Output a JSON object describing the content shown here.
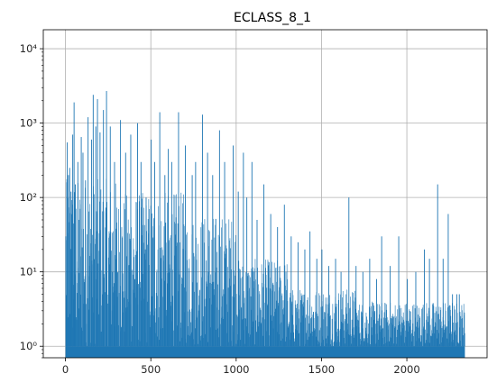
{
  "chart_data": {
    "type": "bar",
    "title": "ECLASS_8_1",
    "xlabel": "",
    "ylabel": "",
    "x_scale": "linear",
    "y_scale": "log",
    "xlim": [
      -130,
      2470
    ],
    "ylim": [
      0.7,
      18000
    ],
    "grid": true,
    "color": "#1f77b4",
    "x_ticks": [
      0,
      500,
      1000,
      1500,
      2000
    ],
    "x_tick_labels": [
      "0",
      "500",
      "1000",
      "1500",
      "2000"
    ],
    "y_ticks": [
      1,
      10,
      100,
      1000,
      10000
    ],
    "y_tick_labels": [
      "10⁰",
      "10¹",
      "10²",
      "10³",
      "10⁴"
    ],
    "x_range": [
      0,
      2340
    ],
    "bin_width": 2,
    "baseline_value": 1,
    "spikes": [
      {
        "x": 5,
        "value": 160
      },
      {
        "x": 8,
        "value": 550
      },
      {
        "x": 15,
        "value": 200
      },
      {
        "x": 22,
        "value": 250
      },
      {
        "x": 30,
        "value": 120
      },
      {
        "x": 40,
        "value": 700
      },
      {
        "x": 48,
        "value": 1900
      },
      {
        "x": 55,
        "value": 150
      },
      {
        "x": 70,
        "value": 300
      },
      {
        "x": 90,
        "value": 650
      },
      {
        "x": 100,
        "value": 400
      },
      {
        "x": 115,
        "value": 170
      },
      {
        "x": 130,
        "value": 1200
      },
      {
        "x": 150,
        "value": 600
      },
      {
        "x": 160,
        "value": 2400
      },
      {
        "x": 175,
        "value": 900
      },
      {
        "x": 185,
        "value": 2100
      },
      {
        "x": 200,
        "value": 750
      },
      {
        "x": 220,
        "value": 1500
      },
      {
        "x": 238,
        "value": 2700
      },
      {
        "x": 260,
        "value": 900
      },
      {
        "x": 285,
        "value": 300
      },
      {
        "x": 320,
        "value": 1100
      },
      {
        "x": 350,
        "value": 400
      },
      {
        "x": 380,
        "value": 700
      },
      {
        "x": 420,
        "value": 1000
      },
      {
        "x": 440,
        "value": 300
      },
      {
        "x": 470,
        "value": 100
      },
      {
        "x": 500,
        "value": 600
      },
      {
        "x": 520,
        "value": 300
      },
      {
        "x": 550,
        "value": 1400
      },
      {
        "x": 580,
        "value": 200
      },
      {
        "x": 600,
        "value": 450
      },
      {
        "x": 620,
        "value": 300
      },
      {
        "x": 660,
        "value": 1400
      },
      {
        "x": 700,
        "value": 500
      },
      {
        "x": 740,
        "value": 200
      },
      {
        "x": 760,
        "value": 300
      },
      {
        "x": 800,
        "value": 1300
      },
      {
        "x": 830,
        "value": 400
      },
      {
        "x": 860,
        "value": 200
      },
      {
        "x": 900,
        "value": 800
      },
      {
        "x": 930,
        "value": 300
      },
      {
        "x": 980,
        "value": 500
      },
      {
        "x": 1010,
        "value": 120
      },
      {
        "x": 1040,
        "value": 400
      },
      {
        "x": 1060,
        "value": 100
      },
      {
        "x": 1090,
        "value": 300
      },
      {
        "x": 1120,
        "value": 50
      },
      {
        "x": 1160,
        "value": 150
      },
      {
        "x": 1200,
        "value": 60
      },
      {
        "x": 1240,
        "value": 40
      },
      {
        "x": 1280,
        "value": 80
      },
      {
        "x": 1320,
        "value": 30
      },
      {
        "x": 1360,
        "value": 25
      },
      {
        "x": 1400,
        "value": 20
      },
      {
        "x": 1430,
        "value": 35
      },
      {
        "x": 1470,
        "value": 15
      },
      {
        "x": 1500,
        "value": 20
      },
      {
        "x": 1540,
        "value": 12
      },
      {
        "x": 1580,
        "value": 15
      },
      {
        "x": 1612,
        "value": 10
      },
      {
        "x": 1658,
        "value": 100
      },
      {
        "x": 1700,
        "value": 12
      },
      {
        "x": 1740,
        "value": 10
      },
      {
        "x": 1780,
        "value": 15
      },
      {
        "x": 1820,
        "value": 8
      },
      {
        "x": 1850,
        "value": 30
      },
      {
        "x": 1900,
        "value": 12
      },
      {
        "x": 1950,
        "value": 30
      },
      {
        "x": 2000,
        "value": 8
      },
      {
        "x": 2050,
        "value": 10
      },
      {
        "x": 2100,
        "value": 20
      },
      {
        "x": 2130,
        "value": 15
      },
      {
        "x": 2178,
        "value": 150
      },
      {
        "x": 2210,
        "value": 15
      },
      {
        "x": 2240,
        "value": 60
      },
      {
        "x": 2265,
        "value": 5
      },
      {
        "x": 2290,
        "value": 5
      },
      {
        "x": 2305,
        "value": 5
      }
    ]
  }
}
